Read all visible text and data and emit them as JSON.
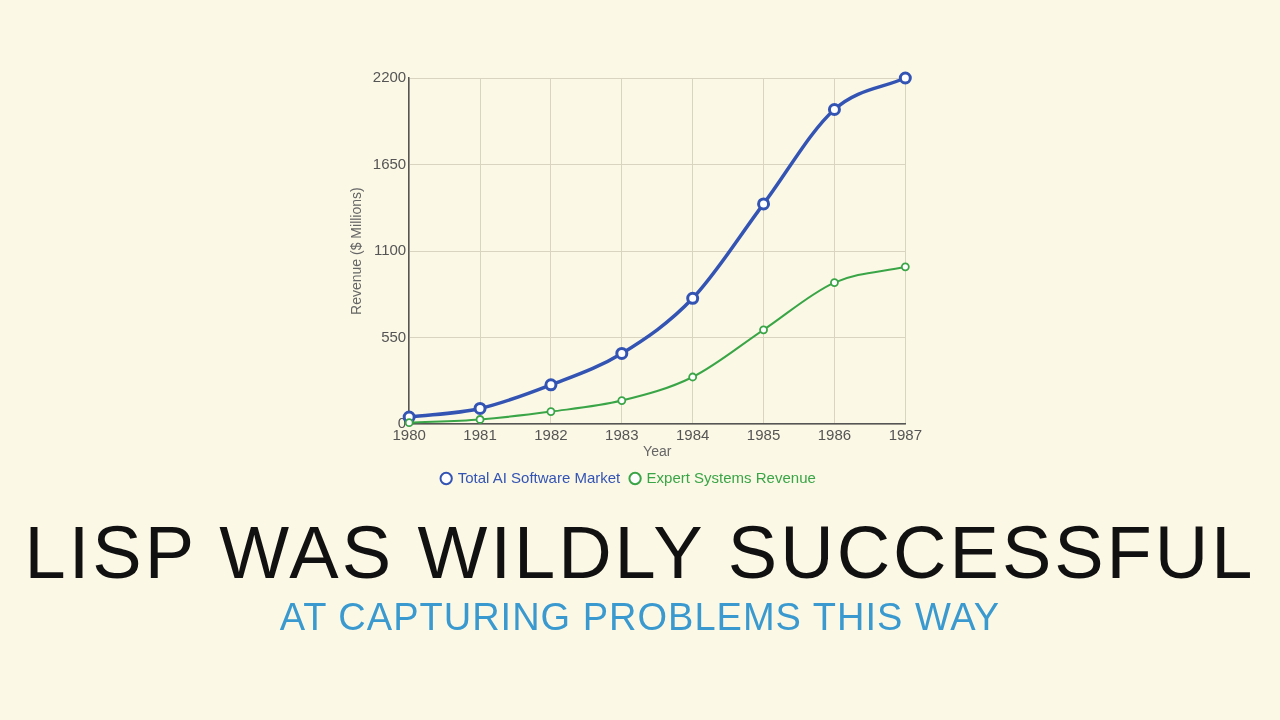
{
  "chart_data": {
    "type": "line",
    "title": "LISP WAS WILDLY SUCCESSFUL",
    "subtitle": "AT CAPTURING PROBLEMS THIS WAY",
    "xlabel": "Year",
    "ylabel": "Revenue ($ Millions)",
    "x": [
      1980,
      1981,
      1982,
      1983,
      1984,
      1985,
      1986,
      1987
    ],
    "xlim": [
      1980,
      1987
    ],
    "xticks": [
      1980,
      1981,
      1982,
      1983,
      1984,
      1985,
      1986,
      1987
    ],
    "ylim": [
      0,
      2200
    ],
    "yticks": [
      0,
      550,
      1100,
      1650,
      2200
    ],
    "grid": true,
    "legend": "bottom",
    "marker": "circle",
    "line_style": "solid",
    "series": [
      {
        "name": "Total AI Software Market",
        "color": "#3454b4",
        "values": [
          45,
          100,
          250,
          450,
          800,
          1400,
          2000,
          2200
        ]
      },
      {
        "name": "Expert Systems Revenue",
        "color": "#3aa546",
        "values": [
          10,
          30,
          80,
          150,
          300,
          600,
          900,
          1000
        ]
      }
    ]
  }
}
